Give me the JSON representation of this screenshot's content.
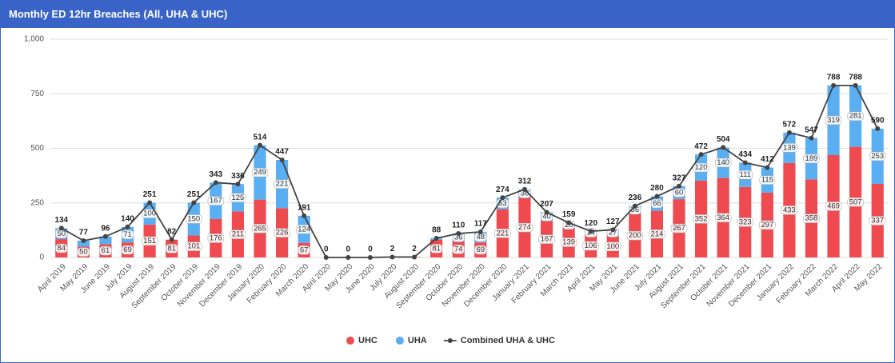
{
  "chart_data": {
    "type": "bar",
    "stacked": true,
    "title": "Monthly ED 12hr Breaches (All, UHA & UHC)",
    "categories": [
      "April 2019",
      "May 2019",
      "June 2019",
      "July 2019",
      "August 2019",
      "September 2019",
      "October 2019",
      "November 2019",
      "December 2019",
      "January 2020",
      "February 2020",
      "March 2020",
      "April 2020",
      "May 2020",
      "June 2020",
      "July 2020",
      "August 2020",
      "September 2020",
      "October 2020",
      "November 2020",
      "December 2020",
      "January 2021",
      "February 2021",
      "March 2021",
      "April 2021",
      "May 2021",
      "June 2021",
      "July 2021",
      "August 2021",
      "September 2021",
      "October 2021",
      "November 2021",
      "December 2021",
      "January 2022",
      "February 2022",
      "March 2022",
      "April 2022",
      "May 2022"
    ],
    "series": [
      {
        "name": "UHC",
        "type": "bar",
        "color": "#ee4a4f",
        "values": [
          84,
          50,
          61,
          69,
          151,
          81,
          101,
          176,
          211,
          265,
          226,
          67,
          0,
          0,
          0,
          2,
          2,
          81,
          74,
          69,
          221,
          274,
          167,
          139,
          106,
          100,
          200,
          214,
          267,
          352,
          364,
          323,
          297,
          433,
          358,
          469,
          507,
          337
        ],
        "value_labels": [
          "84",
          "50",
          "61",
          "69",
          "151",
          "81",
          "101",
          "176",
          "211",
          "265",
          "226",
          "67",
          null,
          null,
          null,
          null,
          null,
          "81",
          "74",
          "69",
          "221",
          "274",
          "167",
          "139",
          "106",
          "100",
          "200",
          "214",
          "267",
          "352",
          "364",
          "323",
          "297",
          "433",
          "358",
          "469",
          "507",
          "337"
        ]
      },
      {
        "name": "UHA",
        "type": "bar",
        "color": "#5aaef2",
        "values": [
          50,
          27,
          35,
          71,
          100,
          1,
          150,
          167,
          125,
          249,
          221,
          124,
          0,
          0,
          0,
          0,
          0,
          7,
          36,
          48,
          53,
          38,
          40,
          20,
          14,
          27,
          36,
          66,
          60,
          120,
          140,
          111,
          115,
          139,
          189,
          319,
          281,
          253
        ],
        "value_labels": [
          "50",
          null,
          null,
          "71",
          "100",
          null,
          "150",
          "167",
          "125",
          "249",
          "221",
          "124",
          null,
          null,
          null,
          null,
          null,
          null,
          "36",
          "48",
          "53",
          "38",
          "40",
          "20",
          "14",
          "27",
          "36",
          "66",
          "60",
          "120",
          "140",
          "111",
          "115",
          "139",
          "189",
          "319",
          "281",
          "253"
        ]
      },
      {
        "name": "Combined UHA & UHC",
        "type": "line",
        "color": "#444444",
        "values": [
          134,
          77,
          96,
          140,
          251,
          82,
          251,
          343,
          336,
          514,
          447,
          191,
          0,
          0,
          0,
          2,
          2,
          88,
          110,
          117,
          274,
          312,
          207,
          159,
          120,
          127,
          236,
          280,
          327,
          472,
          504,
          434,
          412,
          572,
          547,
          788,
          788,
          590
        ],
        "value_labels": [
          "134",
          "77",
          "96",
          "140",
          "251",
          "82",
          "251",
          "343",
          "336",
          "514",
          "447",
          "191",
          "0",
          "0",
          "0",
          "2",
          "2",
          "88",
          "110",
          "117",
          "274",
          "312",
          "207",
          "159",
          "120",
          "127",
          "236",
          "280",
          "327",
          "472",
          "504",
          "434",
          "412",
          "572",
          "547",
          "788",
          "788",
          "590"
        ]
      }
    ],
    "ylim": [
      0,
      1000
    ],
    "yticks": [
      0,
      250,
      500,
      750,
      {
        "value": 1000,
        "label": "1,000"
      }
    ],
    "grid": true,
    "legend": "bottom"
  }
}
